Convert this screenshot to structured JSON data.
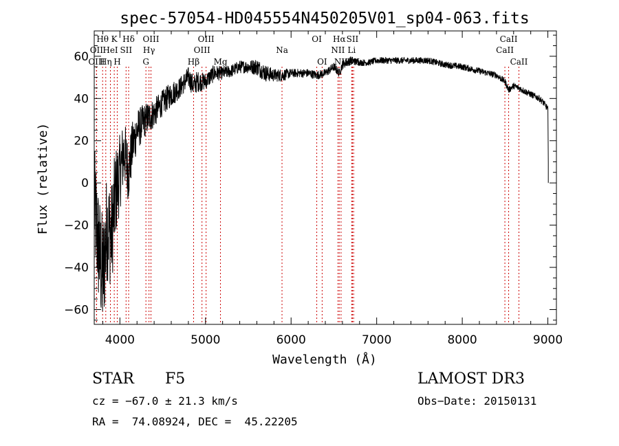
{
  "chart_data": {
    "type": "line",
    "title": "spec-57054-HD045554N450205V01_sp04-063.fits",
    "xlabel": "Wavelength (Å)",
    "ylabel": "Flux (relative)",
    "xlim": [
      3700,
      9100
    ],
    "ylim": [
      -67,
      72
    ],
    "xticks": [
      4000,
      5000,
      6000,
      7000,
      8000,
      9000
    ],
    "xtick_labels": [
      "4000",
      "5000",
      "6000",
      "7000",
      "8000",
      "9000"
    ],
    "yticks": [
      -60,
      -40,
      -20,
      0,
      20,
      40,
      60
    ],
    "ytick_labels": [
      "−60",
      "−40",
      "−20",
      "0",
      "20",
      "40",
      "60"
    ],
    "grid": false,
    "series": [
      {
        "name": "spectrum",
        "color": "#000000",
        "x": [
          3700,
          3750,
          3800,
          3850,
          3900,
          3950,
          4000,
          4050,
          4100,
          4150,
          4200,
          4300,
          4400,
          4500,
          4600,
          4700,
          4800,
          4861,
          4900,
          5000,
          5100,
          5200,
          5300,
          5400,
          5500,
          5600,
          5700,
          5800,
          5900,
          6000,
          6100,
          6200,
          6300,
          6400,
          6500,
          6563,
          6600,
          6700,
          6800,
          6900,
          7000,
          7200,
          7400,
          7600,
          7800,
          8000,
          8200,
          8400,
          8500,
          8542,
          8600,
          8662,
          8700,
          8800,
          8900,
          8950,
          9000,
          9005
        ],
        "y": [
          -10,
          -30,
          -45,
          -20,
          -25,
          -5,
          5,
          15,
          5,
          18,
          25,
          30,
          33,
          38,
          42,
          45,
          50,
          46,
          48,
          48,
          52,
          52,
          53,
          55,
          55,
          55,
          52,
          51,
          51,
          52,
          52,
          52,
          51,
          52,
          55,
          52,
          56,
          58,
          57,
          57,
          58,
          58,
          58,
          58,
          56,
          55,
          53,
          51,
          48,
          44,
          46,
          45,
          44,
          42,
          40,
          38,
          35,
          10
        ],
        "noise": [
          28,
          28,
          30,
          26,
          25,
          22,
          18,
          16,
          14,
          12,
          10,
          8,
          7,
          6,
          6,
          5,
          5,
          5,
          5,
          4,
          4,
          3,
          3,
          3,
          3,
          4,
          4,
          3,
          3,
          2,
          2,
          2,
          2,
          2,
          2,
          2,
          2,
          2,
          1.5,
          1.5,
          1.5,
          1.5,
          1.5,
          1.5,
          1.5,
          1.5,
          1.5,
          1.5,
          1.5,
          1.5,
          1.5,
          1.5,
          1.5,
          1.5,
          1.5,
          1.5,
          1.5,
          1.5
        ]
      }
    ],
    "line_markers": [
      {
        "label": "Hθ",
        "wavelength": 3798,
        "row": 1
      },
      {
        "label": "OII",
        "wavelength": 3727,
        "row": 2
      },
      {
        "label": "OIII",
        "wavelength": 3727,
        "row": 3
      },
      {
        "label": "HeI",
        "wavelength": 3889,
        "row": 2
      },
      {
        "label": "Hη",
        "wavelength": 3835,
        "row": 3
      },
      {
        "label": "K",
        "wavelength": 3934,
        "row": 1
      },
      {
        "label": "H",
        "wavelength": 3969,
        "row": 3
      },
      {
        "label": "SII",
        "wavelength": 4072,
        "row": 2
      },
      {
        "label": "Hδ",
        "wavelength": 4102,
        "row": 1
      },
      {
        "label": "OIII",
        "wavelength": 4363,
        "row": 1
      },
      {
        "label": "Hγ",
        "wavelength": 4340,
        "row": 2
      },
      {
        "label": "G",
        "wavelength": 4304,
        "row": 3
      },
      {
        "label": "Hβ",
        "wavelength": 4861,
        "row": 3
      },
      {
        "label": "OIII",
        "wavelength": 5007,
        "row": 1
      },
      {
        "label": "OIII",
        "wavelength": 4959,
        "row": 2
      },
      {
        "label": "Mg",
        "wavelength": 5175,
        "row": 3
      },
      {
        "label": "Na",
        "wavelength": 5894,
        "row": 2
      },
      {
        "label": "OI",
        "wavelength": 6300,
        "row": 1
      },
      {
        "label": "OI",
        "wavelength": 6363,
        "row": 3
      },
      {
        "label": "Hα",
        "wavelength": 6563,
        "row": 1
      },
      {
        "label": "NII",
        "wavelength": 6548,
        "row": 2
      },
      {
        "label": "NII",
        "wavelength": 6584,
        "row": 3
      },
      {
        "label": "SII",
        "wavelength": 6717,
        "row": 1
      },
      {
        "label": "Li",
        "wavelength": 6708,
        "row": 2
      },
      {
        "label": "SII",
        "wavelength": 6731,
        "row": 3
      },
      {
        "label": "CaII",
        "wavelength": 8542,
        "row": 1
      },
      {
        "label": "CaII",
        "wavelength": 8498,
        "row": 2
      },
      {
        "label": "CaII",
        "wavelength": 8662,
        "row": 3
      }
    ]
  },
  "info": {
    "object_class": "STAR",
    "subclass": "F5",
    "survey": "LAMOST DR3",
    "redshift_line": "cz = −67.0 ± 21.3 km/s",
    "obs_date_line": "Obs−Date: 20150131",
    "coords_line": "RA =  74.08924, DEC =  45.22205"
  }
}
